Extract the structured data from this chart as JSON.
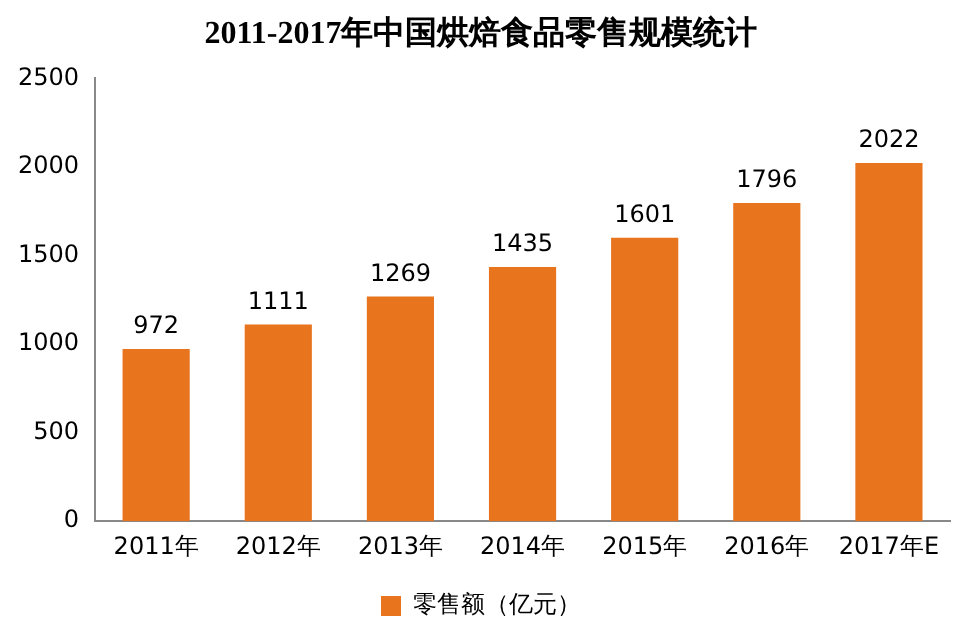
{
  "chart_data": {
    "type": "bar",
    "title": "2011-2017年中国烘焙食品零售规模统计",
    "categories": [
      "2011年",
      "2012年",
      "2013年",
      "2014年",
      "2015年",
      "2016年",
      "2017年E"
    ],
    "series": [
      {
        "name": "零售额（亿元）",
        "color": "#e8741e",
        "values": [
          972,
          1111,
          1269,
          1435,
          1601,
          1796,
          2022
        ]
      }
    ],
    "ylim": [
      0,
      2500
    ],
    "yticks": [
      0,
      500,
      1000,
      1500,
      2000,
      2500
    ],
    "grid": false,
    "legend": "bottom",
    "data_labels": true
  }
}
